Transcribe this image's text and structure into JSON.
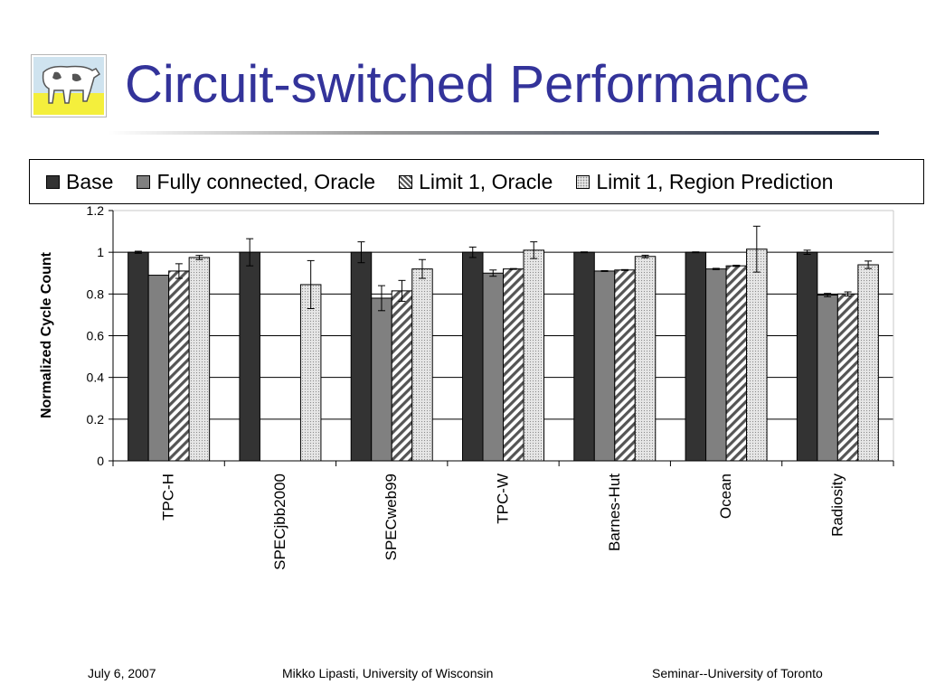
{
  "slide": {
    "title": "Circuit-switched Performance",
    "footer": {
      "date": "July 6, 2007",
      "author": "Mikko Lipasti, University of Wisconsin",
      "venue": "Seminar--University of Toronto"
    },
    "logo_icon": "cow-logo-icon",
    "title_color": "#33339a"
  },
  "chart_data": {
    "type": "bar",
    "ylabel": "Normalized Cycle Count",
    "xlabel": "",
    "ylim": [
      0,
      1.2
    ],
    "yticks": [
      0,
      0.2,
      0.4,
      0.6,
      0.8,
      1,
      1.2
    ],
    "ytick_labels": [
      "0",
      "0.2",
      "0.4",
      "0.6",
      "0.8",
      "1",
      "1.2"
    ],
    "grid": true,
    "legend_position": "top",
    "categories": [
      "TPC-H",
      "SPECjbb2000",
      "SPECweb99",
      "TPC-W",
      "Barnes-Hut",
      "Ocean",
      "Radiosity"
    ],
    "series": [
      {
        "name": "Base",
        "pattern": "solid-dark",
        "color": "#333333",
        "values": [
          1.0,
          1.0,
          1.0,
          1.0,
          1.0,
          1.0,
          1.0
        ],
        "error": [
          0.005,
          0.065,
          0.05,
          0.025,
          0.002,
          0.002,
          0.01
        ]
      },
      {
        "name": "Fully connected, Oracle",
        "pattern": "solid-gray",
        "color": "#808080",
        "values": [
          0.89,
          0,
          0.78,
          0.9,
          0.91,
          0.92,
          0.795
        ],
        "error": [
          0,
          0,
          0.06,
          0.015,
          0.002,
          0.003,
          0.008
        ]
      },
      {
        "name": "Limit 1, Oracle",
        "pattern": "diagonal-stripes",
        "color": "#555555",
        "values": [
          0.91,
          0,
          0.815,
          0.92,
          0.915,
          0.935,
          0.8
        ],
        "error": [
          0.035,
          0,
          0.05,
          0.002,
          0.002,
          0.003,
          0.01
        ]
      },
      {
        "name": "Limit 1, Region Prediction",
        "pattern": "dotted-light",
        "color": "#d9d9d9",
        "values": [
          0.975,
          0.845,
          0.92,
          1.01,
          0.98,
          1.015,
          0.94
        ],
        "error": [
          0.01,
          0.115,
          0.045,
          0.04,
          0.006,
          0.11,
          0.018
        ]
      }
    ]
  }
}
